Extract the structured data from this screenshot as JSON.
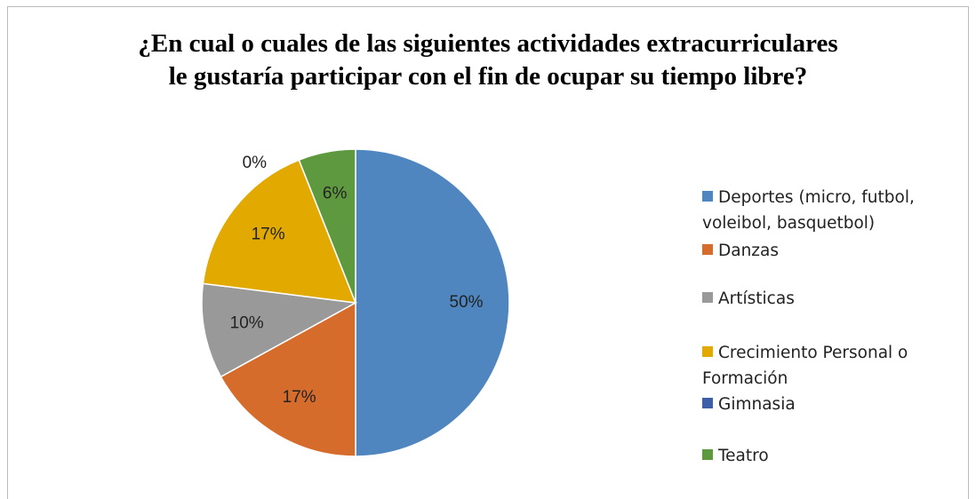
{
  "chart_data": {
    "type": "pie",
    "title": [
      "¿En cual o cuales de las siguientes actividades extracurriculares",
      "le gustaría participar con el fin de ocupar su tiempo libre?"
    ],
    "categories": [
      "Deportes (micro, futbol, voleibol, basquetbol)",
      "Danzas",
      "Artísticas",
      "Crecimiento Personal o Formación",
      "Gimnasia",
      "Teatro"
    ],
    "values": [
      50,
      17,
      10,
      17,
      0,
      6
    ],
    "value_labels": [
      "50%",
      "17%",
      "10%",
      "17%",
      "0%",
      "6%"
    ],
    "colors": [
      "#4f86c0",
      "#d56c2c",
      "#999999",
      "#e2aa00",
      "#3e5fa8",
      "#5f993f"
    ],
    "legend": "right"
  }
}
